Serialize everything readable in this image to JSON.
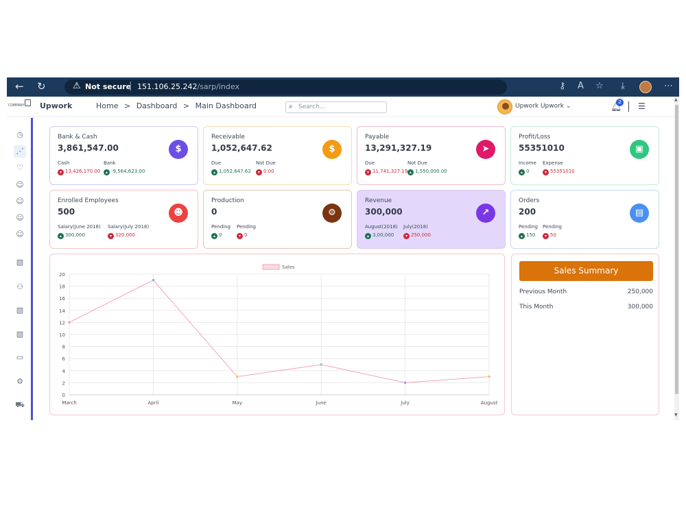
{
  "browser": {
    "security_label": "Not secure",
    "url_host": "151.106.25.242",
    "url_path": "/sarp/index"
  },
  "header": {
    "logo_text": "COMPANY",
    "brand": "Upwork",
    "breadcrumb": [
      "Home",
      ">",
      "Dashboard",
      ">",
      "Main Dashboard"
    ],
    "search_placeholder": "Search...",
    "user_name": "Upwork Upwork",
    "notification_count": "2"
  },
  "cards": [
    {
      "title": "Bank & Cash",
      "value": "3,861,547.00",
      "icon_color": "#6c4ee6",
      "icon": "$",
      "subs": [
        {
          "label": "Cash",
          "value": "13,426,170.00",
          "dir": "down"
        },
        {
          "label": "Bank",
          "value": "-9,564,623.00",
          "dir": "up"
        }
      ]
    },
    {
      "title": "Receivable",
      "value": "1,052,647.62",
      "icon_color": "#f39b12",
      "icon": "$",
      "subs": [
        {
          "label": "Due",
          "value": "1,052,647.62",
          "dir": "up"
        },
        {
          "label": "Not Due",
          "value": "0.00",
          "dir": "down"
        }
      ]
    },
    {
      "title": "Payable",
      "value": "13,291,327.19",
      "icon_color": "#e0196a",
      "icon": "➤",
      "subs": [
        {
          "label": "Due",
          "value": "11,741,327.19",
          "dir": "down"
        },
        {
          "label": "Not Due",
          "value": "1,550,000.00",
          "dir": "up"
        }
      ]
    },
    {
      "title": "Profit/Loss",
      "value": "55351010",
      "icon_color": "#2ec77f",
      "icon": "▣",
      "subs": [
        {
          "label": "Income",
          "value": "0",
          "dir": "up"
        },
        {
          "label": "Expense",
          "value": "55351010",
          "dir": "down"
        }
      ]
    },
    {
      "title": "Enrolled Employees",
      "value": "500",
      "icon_color": "#ea4340",
      "icon": "☻",
      "subs": [
        {
          "label": "Salary(June 2018)",
          "value": "300,000",
          "dir": "up"
        },
        {
          "label": "Salary(July 2018)",
          "value": "320,000",
          "dir": "down"
        }
      ]
    },
    {
      "title": "Production",
      "value": "0",
      "icon_color": "#7a3410",
      "icon": "⚙",
      "subs": [
        {
          "label": "Pending",
          "value": "0",
          "dir": "up"
        },
        {
          "label": "Pending",
          "value": "0",
          "dir": "down"
        }
      ]
    },
    {
      "title": "Revenue",
      "value": "300,000",
      "icon_color": "#7a37e6",
      "icon": "↗",
      "subs": [
        {
          "label": "August(2018)",
          "value": "3,00,000",
          "dir": "up"
        },
        {
          "label": "July(2018)",
          "value": "250,000",
          "dir": "down"
        }
      ]
    },
    {
      "title": "Orders",
      "value": "200",
      "icon_color": "#4a90f0",
      "icon": "▤",
      "subs": [
        {
          "label": "Pending",
          "value": "150",
          "dir": "up"
        },
        {
          "label": "Pending",
          "value": "50",
          "dir": "down"
        }
      ]
    }
  ],
  "chart_data": {
    "type": "line",
    "categories": [
      "March",
      "April",
      "May",
      "June",
      "July",
      "August"
    ],
    "series": [
      {
        "name": "Sales",
        "values": [
          12,
          19,
          3,
          5,
          2,
          3
        ]
      }
    ],
    "ylim": [
      0,
      20
    ],
    "yticks": [
      0,
      2,
      4,
      6,
      8,
      10,
      12,
      14,
      16,
      18,
      20
    ],
    "legend": "top",
    "grid": true,
    "line_color": "#f3a3b5",
    "point_colors": [
      "#f3a3b5",
      "#8fb3de",
      "#f0c070",
      "#b0b8c4",
      "#a89af0",
      "#f0c070"
    ]
  },
  "summary": {
    "button": "Sales Summary",
    "rows": [
      {
        "label": "Previous Month",
        "value": "250,000"
      },
      {
        "label": "This Month",
        "value": "300,000"
      }
    ]
  }
}
